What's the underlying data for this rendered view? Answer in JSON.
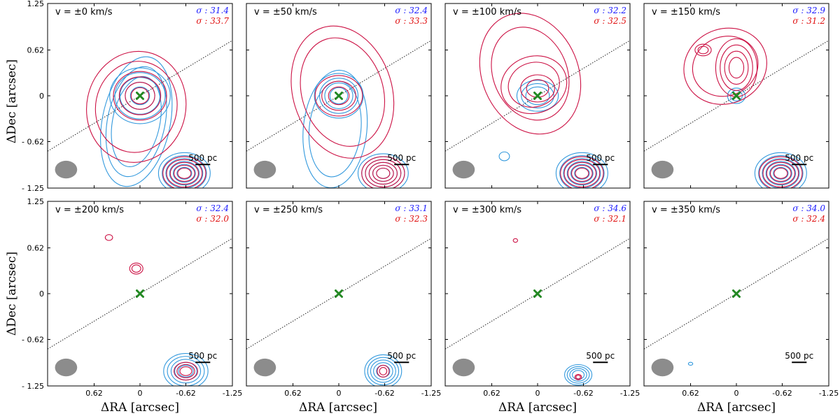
{
  "figure": {
    "xlabel": "ΔRA [arcsec]",
    "ylabel": "ΔDec [arcsec]",
    "x_ticks": [
      "0.62",
      "0",
      "-0.62",
      "-1.25"
    ],
    "y_ticks": [
      "1.25",
      "0.62",
      "0",
      "- 0.62",
      "- 1.25"
    ],
    "colors": {
      "blue": "#3399dd",
      "red": "#cc1144",
      "sigma_blue": "#1a1aff",
      "sigma_red": "#e01010",
      "marker": "#228822",
      "beam": "#8c8c8c"
    }
  },
  "chart_data": {
    "type": "contour-grid",
    "axis_range": {
      "ra": [
        1.25,
        -1.25
      ],
      "dec": [
        -1.25,
        1.25
      ]
    },
    "beam_center": [
      1.0,
      -1.0
    ],
    "beam_size_arcsec": [
      0.3,
      0.24
    ],
    "scale_bar": {
      "label": "500 pc",
      "length_arcsec": 0.2,
      "center": [
        -0.85,
        -0.93
      ]
    },
    "pa_line_slope": 0.6,
    "nucleus": [
      0,
      0
    ],
    "panels": [
      {
        "velocity": "v = ±0 km/s",
        "sigma_blue": "σ : 31.4",
        "sigma_red": "σ : 33.7",
        "blue": [
          {
            "cx": 0.0,
            "cy": 0.0,
            "rx": 0.13,
            "ry": 0.12,
            "n": 5,
            "dr": 0.07,
            "r": 0
          },
          {
            "cx": 0.05,
            "cy": -0.35,
            "rx": 0.32,
            "ry": 0.62,
            "n": 3,
            "dr": 0.07,
            "r": 0.2
          },
          {
            "cx": -0.6,
            "cy": -1.05,
            "rx": 0.1,
            "ry": 0.08,
            "n": 6,
            "dr": 0.05,
            "r": 0
          }
        ],
        "red": [
          {
            "cx": 0.0,
            "cy": 0.0,
            "rx": 0.12,
            "ry": 0.11,
            "n": 4,
            "dr": 0.08,
            "r": 0
          },
          {
            "cx": 0.05,
            "cy": -0.15,
            "rx": 0.55,
            "ry": 0.62,
            "n": 2,
            "dr": 0.12,
            "r": 0.2
          },
          {
            "cx": -0.6,
            "cy": -1.05,
            "rx": 0.09,
            "ry": 0.07,
            "n": 5,
            "dr": 0.05,
            "r": 0
          }
        ]
      },
      {
        "velocity": "v = ±50 km/s",
        "sigma_blue": "σ : 32.4",
        "sigma_red": "σ : 33.3",
        "blue": [
          {
            "cx": 0.0,
            "cy": 0.0,
            "rx": 0.12,
            "ry": 0.11,
            "n": 4,
            "dr": 0.07,
            "r": 0
          },
          {
            "cx": 0.05,
            "cy": -0.45,
            "rx": 0.35,
            "ry": 0.65,
            "n": 2,
            "dr": 0.08,
            "r": 0.1
          },
          {
            "cx": -0.6,
            "cy": -1.05,
            "rx": 0.09,
            "ry": 0.07,
            "n": 6,
            "dr": 0.05,
            "r": 0
          }
        ],
        "red": [
          {
            "cx": 0.0,
            "cy": 0.0,
            "rx": 0.14,
            "ry": 0.12,
            "n": 3,
            "dr": 0.09,
            "r": 0
          },
          {
            "cx": -0.05,
            "cy": 0.05,
            "rx": 0.55,
            "ry": 0.75,
            "n": 2,
            "dr": 0.12,
            "r": -0.3
          },
          {
            "cx": -0.6,
            "cy": -1.05,
            "rx": 0.09,
            "ry": 0.07,
            "n": 5,
            "dr": 0.05,
            "r": 0
          }
        ]
      },
      {
        "velocity": "v = ±100 km/s",
        "sigma_blue": "σ : 32.2",
        "sigma_red": "σ : 32.5",
        "blue": [
          {
            "cx": 0.0,
            "cy": 0.0,
            "rx": 0.16,
            "ry": 0.12,
            "n": 3,
            "dr": 0.06,
            "r": 0
          },
          {
            "cx": 0.45,
            "cy": -0.82,
            "rx": 0.07,
            "ry": 0.06,
            "n": 1,
            "dr": 0.0,
            "r": 0
          },
          {
            "cx": -0.6,
            "cy": -1.05,
            "rx": 0.1,
            "ry": 0.08,
            "n": 6,
            "dr": 0.05,
            "r": 0
          }
        ],
        "red": [
          {
            "cx": 0.0,
            "cy": 0.1,
            "rx": 0.15,
            "ry": 0.12,
            "n": 2,
            "dr": 0.08,
            "r": 0
          },
          {
            "cx": 0.05,
            "cy": 0.15,
            "rx": 0.35,
            "ry": 0.3,
            "n": 2,
            "dr": 0.1,
            "r": -0.3
          },
          {
            "cx": 0.1,
            "cy": 0.3,
            "rx": 0.5,
            "ry": 0.65,
            "n": 2,
            "dr": 0.15,
            "r": -0.4
          },
          {
            "cx": -0.6,
            "cy": -1.05,
            "rx": 0.09,
            "ry": 0.07,
            "n": 5,
            "dr": 0.05,
            "r": 0
          }
        ]
      },
      {
        "velocity": "v = ±150 km/s",
        "sigma_blue": "σ : 32.9",
        "sigma_red": "σ : 31.2",
        "blue": [
          {
            "cx": 0.0,
            "cy": 0.0,
            "rx": 0.08,
            "ry": 0.07,
            "n": 2,
            "dr": 0.04,
            "r": 0
          },
          {
            "cx": -0.6,
            "cy": -1.05,
            "rx": 0.1,
            "ry": 0.08,
            "n": 6,
            "dr": 0.05,
            "r": 0
          }
        ],
        "red": [
          {
            "cx": 0.0,
            "cy": 0.38,
            "rx": 0.1,
            "ry": 0.14,
            "n": 4,
            "dr": 0.06,
            "r": 0
          },
          {
            "cx": 0.45,
            "cy": 0.62,
            "rx": 0.07,
            "ry": 0.05,
            "n": 2,
            "dr": 0.04,
            "r": 0
          },
          {
            "cx": 0.15,
            "cy": 0.4,
            "rx": 0.45,
            "ry": 0.4,
            "n": 2,
            "dr": 0.12,
            "r": -0.4
          },
          {
            "cx": -0.6,
            "cy": -1.05,
            "rx": 0.09,
            "ry": 0.07,
            "n": 5,
            "dr": 0.05,
            "r": 0
          }
        ]
      },
      {
        "velocity": "v = ±200 km/s",
        "sigma_blue": "σ : 32.4",
        "sigma_red": "σ : 32.0",
        "blue": [
          {
            "cx": -0.62,
            "cy": -1.05,
            "rx": 0.1,
            "ry": 0.08,
            "n": 5,
            "dr": 0.05,
            "r": 0
          }
        ],
        "red": [
          {
            "cx": 0.05,
            "cy": 0.34,
            "rx": 0.06,
            "ry": 0.05,
            "n": 2,
            "dr": 0.03,
            "r": 0
          },
          {
            "cx": 0.42,
            "cy": 0.76,
            "rx": 0.05,
            "ry": 0.04,
            "n": 1,
            "dr": 0.0,
            "r": 0
          },
          {
            "cx": -0.62,
            "cy": -1.05,
            "rx": 0.08,
            "ry": 0.06,
            "n": 3,
            "dr": 0.04,
            "r": 0
          }
        ]
      },
      {
        "velocity": "v = ±250 km/s",
        "sigma_blue": "σ : 33.1",
        "sigma_red": "σ : 32.3",
        "blue": [
          {
            "cx": -0.6,
            "cy": -1.05,
            "rx": 0.09,
            "ry": 0.08,
            "n": 5,
            "dr": 0.04,
            "r": 0
          }
        ],
        "red": [
          {
            "cx": -0.6,
            "cy": -1.05,
            "rx": 0.05,
            "ry": 0.05,
            "n": 2,
            "dr": 0.03,
            "r": 0
          }
        ]
      },
      {
        "velocity": "v = ±300 km/s",
        "sigma_blue": "σ : 34.6",
        "sigma_red": "σ : 32.1",
        "blue": [
          {
            "cx": -0.55,
            "cy": -1.1,
            "rx": 0.08,
            "ry": 0.06,
            "n": 4,
            "dr": 0.035,
            "r": 0
          }
        ],
        "red": [
          {
            "cx": -0.55,
            "cy": -1.13,
            "rx": 0.03,
            "ry": 0.025,
            "n": 2,
            "dr": 0.015,
            "r": 0
          },
          {
            "cx": 0.3,
            "cy": 0.72,
            "rx": 0.03,
            "ry": 0.025,
            "n": 1,
            "dr": 0.0,
            "r": 0
          }
        ]
      },
      {
        "velocity": "v = ±350 km/s",
        "sigma_blue": "σ : 34.0",
        "sigma_red": "σ : 32.4",
        "blue": [
          {
            "cx": 0.62,
            "cy": -0.95,
            "rx": 0.03,
            "ry": 0.02,
            "n": 1,
            "dr": 0.0,
            "r": 0
          }
        ],
        "red": []
      }
    ]
  }
}
